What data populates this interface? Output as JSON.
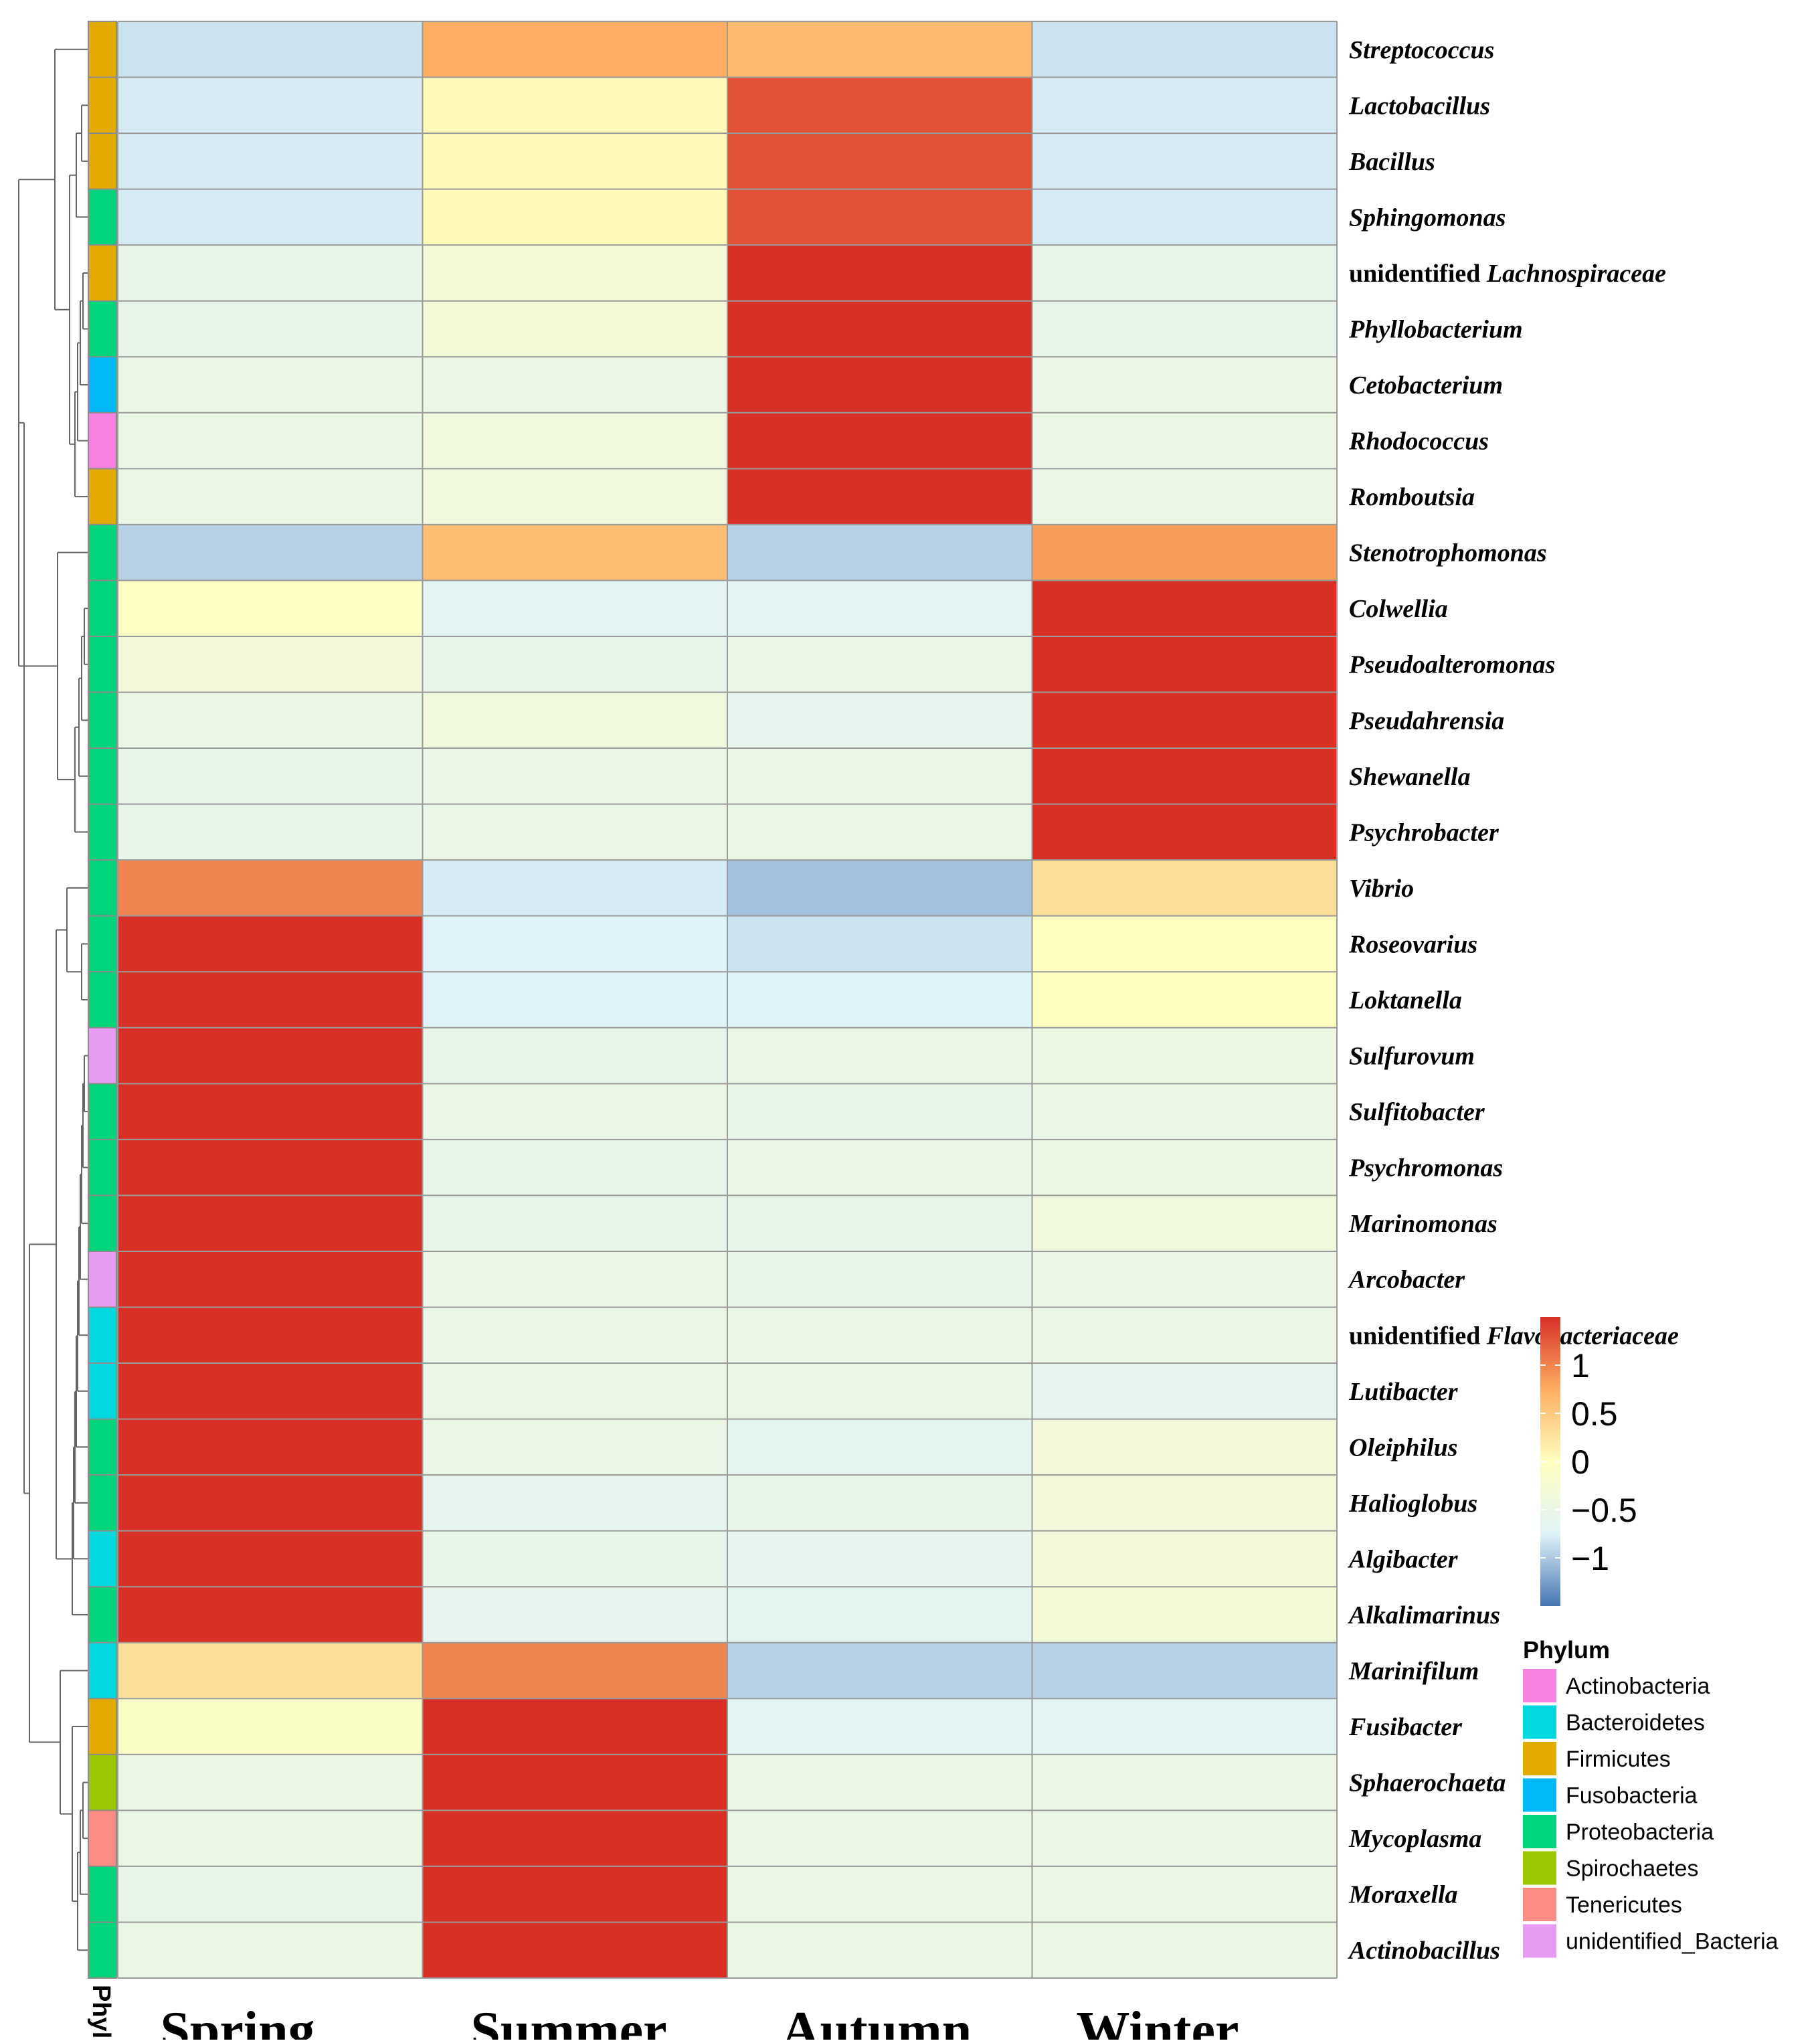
{
  "chart_data": {
    "type": "heatmap",
    "title": "",
    "columns": [
      "Spring",
      "Summer",
      "Autumn",
      "Winter"
    ],
    "rows": [
      {
        "label": "Streptococcus",
        "prefix": "",
        "italic": "Streptococcus",
        "phylum": "Firmicutes",
        "values": [
          -0.85,
          0.75,
          0.65,
          -0.85
        ]
      },
      {
        "label": "Lactobacillus",
        "prefix": "",
        "italic": "Lactobacillus",
        "phylum": "Firmicutes",
        "values": [
          -0.8,
          0.05,
          1.3,
          -0.8
        ]
      },
      {
        "label": "Bacillus",
        "prefix": "",
        "italic": "Bacillus",
        "phylum": "Firmicutes",
        "values": [
          -0.8,
          0.05,
          1.3,
          -0.8
        ]
      },
      {
        "label": "Sphingomonas",
        "prefix": "",
        "italic": "Sphingomonas",
        "phylum": "Proteobacteria",
        "values": [
          -0.8,
          0.05,
          1.3,
          -0.8
        ]
      },
      {
        "label": "unidentified Lachnospiraceae",
        "prefix": "unidentified ",
        "italic": "Lachnospiraceae",
        "phylum": "Firmicutes",
        "values": [
          -0.55,
          -0.3,
          1.5,
          -0.55
        ]
      },
      {
        "label": "Phyllobacterium",
        "prefix": "",
        "italic": "Phyllobacterium",
        "phylum": "Proteobacteria",
        "values": [
          -0.55,
          -0.3,
          1.5,
          -0.55
        ]
      },
      {
        "label": "Cetobacterium",
        "prefix": "",
        "italic": "Cetobacterium",
        "phylum": "Fusobacteria",
        "values": [
          -0.5,
          -0.5,
          1.5,
          -0.5
        ]
      },
      {
        "label": "Rhodococcus",
        "prefix": "",
        "italic": "Rhodococcus",
        "phylum": "Actinobacteria",
        "values": [
          -0.5,
          -0.4,
          1.5,
          -0.5
        ]
      },
      {
        "label": "Romboutsia",
        "prefix": "",
        "italic": "Romboutsia",
        "phylum": "Firmicutes",
        "values": [
          -0.5,
          -0.4,
          1.5,
          -0.5
        ]
      },
      {
        "label": "Stenotrophomonas",
        "prefix": "",
        "italic": "Stenotrophomonas",
        "phylum": "Proteobacteria",
        "values": [
          -0.95,
          0.6,
          -0.95,
          0.85
        ]
      },
      {
        "label": "Colwellia",
        "prefix": "",
        "italic": "Colwellia",
        "phylum": "Proteobacteria",
        "values": [
          -0.05,
          -0.7,
          -0.7,
          1.5
        ]
      },
      {
        "label": "Pseudoalteromonas",
        "prefix": "",
        "italic": "Pseudoalteromonas",
        "phylum": "Proteobacteria",
        "values": [
          -0.35,
          -0.55,
          -0.5,
          1.5
        ]
      },
      {
        "label": "Pseudahrensia",
        "prefix": "",
        "italic": "Pseudahrensia",
        "phylum": "Proteobacteria",
        "values": [
          -0.5,
          -0.4,
          -0.6,
          1.5
        ]
      },
      {
        "label": "Shewanella",
        "prefix": "",
        "italic": "Shewanella",
        "phylum": "Proteobacteria",
        "values": [
          -0.55,
          -0.5,
          -0.5,
          1.5
        ]
      },
      {
        "label": "Psychrobacter",
        "prefix": "",
        "italic": "Psychrobacter",
        "phylum": "Proteobacteria",
        "values": [
          -0.55,
          -0.5,
          -0.5,
          1.5
        ]
      },
      {
        "label": "Vibrio",
        "prefix": "",
        "italic": "Vibrio",
        "phylum": "Proteobacteria",
        "values": [
          1.0,
          -0.8,
          -1.05,
          0.3
        ]
      },
      {
        "label": "Roseovarius",
        "prefix": "",
        "italic": "Roseovarius",
        "phylum": "Proteobacteria",
        "values": [
          1.5,
          -0.75,
          -0.85,
          -0.02
        ]
      },
      {
        "label": "Loktanella",
        "prefix": "",
        "italic": "Loktanella",
        "phylum": "Proteobacteria",
        "values": [
          1.5,
          -0.75,
          -0.75,
          -0.02
        ]
      },
      {
        "label": "Sulfurovum",
        "prefix": "",
        "italic": "Sulfurovum",
        "phylum": "unidentified_Bacteria",
        "values": [
          1.5,
          -0.55,
          -0.5,
          -0.45
        ]
      },
      {
        "label": "Sulfitobacter",
        "prefix": "",
        "italic": "Sulfitobacter",
        "phylum": "Proteobacteria",
        "values": [
          1.5,
          -0.5,
          -0.55,
          -0.5
        ]
      },
      {
        "label": "Psychromonas",
        "prefix": "",
        "italic": "Psychromonas",
        "phylum": "Proteobacteria",
        "values": [
          1.5,
          -0.55,
          -0.5,
          -0.45
        ]
      },
      {
        "label": "Marinomonas",
        "prefix": "",
        "italic": "Marinomonas",
        "phylum": "Proteobacteria",
        "values": [
          1.5,
          -0.55,
          -0.55,
          -0.4
        ]
      },
      {
        "label": "Arcobacter",
        "prefix": "",
        "italic": "Arcobacter",
        "phylum": "unidentified_Bacteria",
        "values": [
          1.5,
          -0.5,
          -0.55,
          -0.5
        ]
      },
      {
        "label": "unidentified Flavobacteriaceae",
        "prefix": "unidentified ",
        "italic": "Flavobacteriaceae",
        "phylum": "Bacteroidetes",
        "values": [
          1.5,
          -0.5,
          -0.5,
          -0.5
        ]
      },
      {
        "label": "Lutibacter",
        "prefix": "",
        "italic": "Lutibacter",
        "phylum": "Bacteroidetes",
        "values": [
          1.5,
          -0.5,
          -0.5,
          -0.6
        ]
      },
      {
        "label": "Oleiphilus",
        "prefix": "",
        "italic": "Oleiphilus",
        "phylum": "Proteobacteria",
        "values": [
          1.5,
          -0.5,
          -0.65,
          -0.35
        ]
      },
      {
        "label": "Halioglobus",
        "prefix": "",
        "italic": "Halioglobus",
        "phylum": "Proteobacteria",
        "values": [
          1.5,
          -0.6,
          -0.55,
          -0.35
        ]
      },
      {
        "label": "Algibacter",
        "prefix": "",
        "italic": "Algibacter",
        "phylum": "Bacteroidetes",
        "values": [
          1.5,
          -0.55,
          -0.6,
          -0.35
        ]
      },
      {
        "label": "Alkalimarinus",
        "prefix": "",
        "italic": "Alkalimarinus",
        "phylum": "Proteobacteria",
        "values": [
          1.5,
          -0.6,
          -0.65,
          -0.3
        ]
      },
      {
        "label": "Marinifilum",
        "prefix": "",
        "italic": "Marinifilum",
        "phylum": "Bacteroidetes",
        "values": [
          0.3,
          1.0,
          -0.95,
          -0.95
        ]
      },
      {
        "label": "Fusibacter",
        "prefix": "",
        "italic": "Fusibacter",
        "phylum": "Firmicutes",
        "values": [
          -0.1,
          1.5,
          -0.7,
          -0.7
        ]
      },
      {
        "label": "Sphaerochaeta",
        "prefix": "",
        "italic": "Sphaerochaeta",
        "phylum": "Spirochaetes",
        "values": [
          -0.5,
          1.5,
          -0.5,
          -0.5
        ]
      },
      {
        "label": "Mycoplasma",
        "prefix": "",
        "italic": "Mycoplasma",
        "phylum": "Tenericutes",
        "values": [
          -0.5,
          1.5,
          -0.5,
          -0.5
        ]
      },
      {
        "label": "Moraxella",
        "prefix": "",
        "italic": "Moraxella",
        "phylum": "Proteobacteria",
        "values": [
          -0.55,
          1.5,
          -0.5,
          -0.5
        ]
      },
      {
        "label": "Actinobacillus",
        "prefix": "",
        "italic": "Actinobacillus",
        "phylum": "Proteobacteria",
        "values": [
          -0.5,
          1.5,
          -0.5,
          -0.5
        ]
      }
    ],
    "annotation_label": "Phylum",
    "colorbar": {
      "range": [
        -1.5,
        1.5
      ],
      "ticks": [
        1,
        0.5,
        0,
        -0.5,
        -1
      ],
      "tick_labels": [
        "1",
        "0.5",
        "0",
        "−0.5",
        "−1"
      ],
      "colors": [
        "#4575b4",
        "#e0f3f8",
        "#ffffbf",
        "#fdae61",
        "#d73027"
      ]
    },
    "phylum_legend": {
      "title": "Phylum",
      "items": [
        {
          "name": "Actinobacteria",
          "color": "#f781de"
        },
        {
          "name": "Bacteroidetes",
          "color": "#00d9e0"
        },
        {
          "name": "Firmicutes",
          "color": "#e3ab00"
        },
        {
          "name": "Fusobacteria",
          "color": "#00b8f5"
        },
        {
          "name": "Proteobacteria",
          "color": "#00d47a"
        },
        {
          "name": "Spirochaetes",
          "color": "#99c800"
        },
        {
          "name": "Tenericutes",
          "color": "#ff8c82"
        },
        {
          "name": "unidentified_Bacteria",
          "color": "#e69cf0"
        }
      ]
    },
    "grid": true
  }
}
